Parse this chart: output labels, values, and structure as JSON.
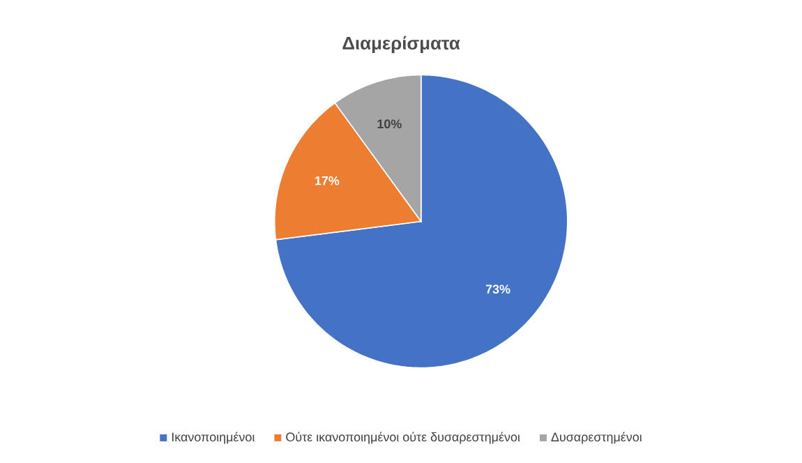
{
  "chart_data": {
    "type": "pie",
    "title": "Διαμερίσματα",
    "categories": [
      "Ικανοποιημένοι",
      "Ούτε ικανοποιημένοι ούτε δυσαρεστημένοι",
      "Δυσαρεστημένοι"
    ],
    "values": [
      73,
      17,
      10
    ],
    "colors": [
      "#4472c4",
      "#ed7d31",
      "#a5a5a5"
    ],
    "value_labels": [
      "73%",
      "17%",
      "10%"
    ],
    "legend": "bottom"
  }
}
